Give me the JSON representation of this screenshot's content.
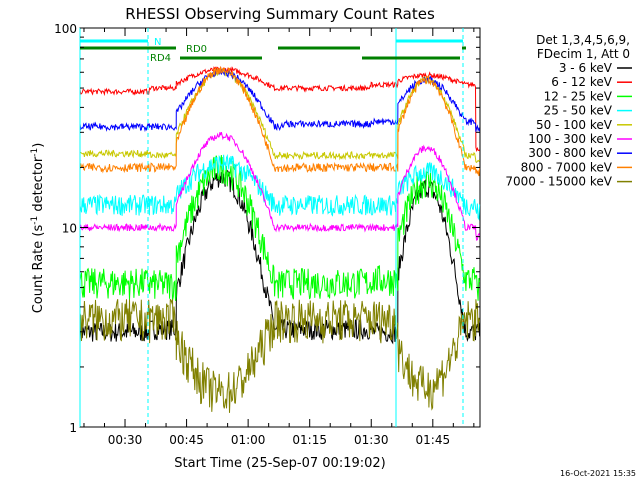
{
  "chart_data": {
    "type": "line",
    "title": "RHESSI Observing Summary Count Rates",
    "xlabel": "Start Time (25-Sep-07 00:19:02)",
    "ylabel_main": "Count Rate (s",
    "ylabel_sup": "-1",
    "ylabel_end": " detector",
    "ylabel_sup2": "-1",
    "ylabel_close": ")",
    "yscale": "log",
    "ylim": [
      1,
      100
    ],
    "xlim_minutes": [
      19.03,
      116.5
    ],
    "x_ticks": [
      {
        "m": 30,
        "label": "00:30"
      },
      {
        "m": 45,
        "label": "00:45"
      },
      {
        "m": 60,
        "label": "01:00"
      },
      {
        "m": 75,
        "label": "01:15"
      },
      {
        "m": 90,
        "label": "01:30"
      },
      {
        "m": 105,
        "label": "01:45"
      }
    ],
    "y_tick_labels": [
      {
        "v": 1,
        "label": "1"
      },
      {
        "v": 10,
        "label": "10"
      },
      {
        "v": 100,
        "label": "100"
      }
    ],
    "legend_header": [
      "Det 1,3,4,5,6,9,",
      "FDecim 1, Att 0"
    ],
    "legend_position": "right",
    "series": [
      {
        "name": "3 - 6 keV",
        "color": "#000000",
        "values": [
          3.0,
          3.1,
          3.0,
          18.0,
          3.1,
          3.0,
          16.0,
          3.0
        ]
      },
      {
        "name": "6 - 12 keV",
        "color": "#ff0000",
        "values": [
          48,
          50,
          62,
          50,
          52,
          58,
          25
        ]
      },
      {
        "name": "12 - 25 keV",
        "color": "#00ff00",
        "values": [
          5.3,
          5.2,
          20.0,
          5.3,
          5.5,
          17.0,
          5.0
        ]
      },
      {
        "name": "25 - 50 keV",
        "color": "#00ffff",
        "values": [
          13.0,
          13.0,
          21.0,
          13.0,
          13.0,
          19.0,
          12.0
        ]
      },
      {
        "name": "50 - 100 keV",
        "color": "#c8c800",
        "values": [
          23.5,
          23.0,
          60.0,
          23.0,
          23.0,
          55.0,
          22.0
        ]
      },
      {
        "name": "100 - 300 keV",
        "color": "#ff00ff",
        "values": [
          10.0,
          10.0,
          29.0,
          10.0,
          10.0,
          25.0,
          9.0
        ]
      },
      {
        "name": "300 - 800 keV",
        "color": "#0000ff",
        "values": [
          32.0,
          32.0,
          60.0,
          33.0,
          34.0,
          55.0,
          31.0
        ]
      },
      {
        "name": "800 - 7000 keV",
        "color": "#ff8000",
        "values": [
          20.0,
          20.0,
          62.0,
          20.0,
          20.0,
          55.0,
          19.0
        ]
      },
      {
        "name": "7000 - 15000 keV",
        "color": "#808000",
        "values": [
          3.5,
          3.5,
          1.5,
          3.5,
          3.5,
          1.6,
          3.5
        ]
      }
    ],
    "annotations": [
      {
        "label": "N",
        "color": "#00ffff"
      },
      {
        "label": "RD4",
        "color": "#008000"
      },
      {
        "label": "RD0",
        "color": "#008000"
      }
    ],
    "timestamp": "16-Oct-2021 15:35"
  }
}
